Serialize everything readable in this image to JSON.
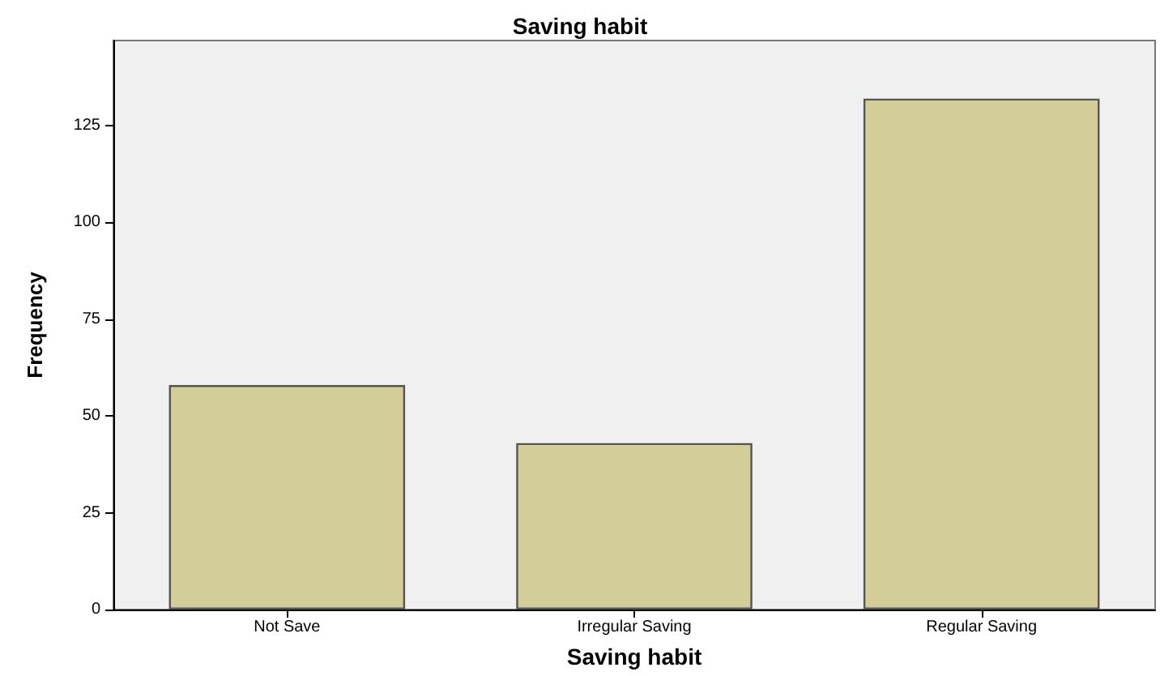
{
  "chart_data": {
    "type": "bar",
    "title": "Saving habit",
    "xlabel": "Saving habit",
    "ylabel": "Frequency",
    "categories": [
      "Not Save",
      "Irregular Saving",
      "Regular Saving"
    ],
    "values": [
      58,
      43,
      132
    ],
    "color": "#d3ce97",
    "ylim": [
      0,
      147
    ],
    "yticks": [
      0,
      25,
      50,
      75,
      100,
      125
    ],
    "grid": false
  }
}
